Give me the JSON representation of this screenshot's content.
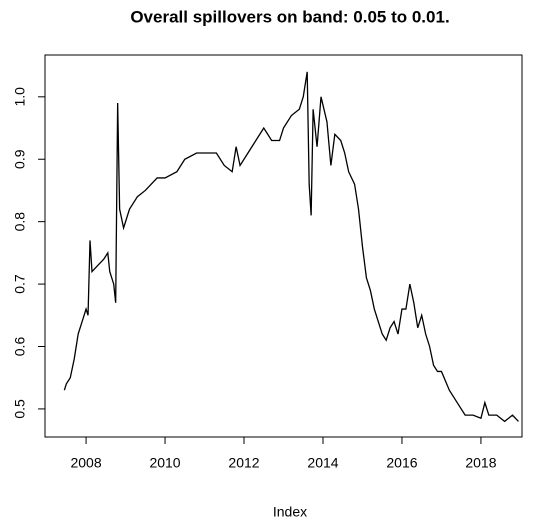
{
  "chart_data": {
    "type": "line",
    "title": "Overall spillovers on band: 0.05 to 0.01.",
    "x_label": "Index",
    "x": [
      2007.45,
      2007.5,
      2007.6,
      2007.7,
      2007.8,
      2007.9,
      2008.0,
      2008.05,
      2008.1,
      2008.15,
      2008.3,
      2008.45,
      2008.55,
      2008.6,
      2008.7,
      2008.75,
      2008.8,
      2008.85,
      2008.95,
      2009.1,
      2009.3,
      2009.5,
      2009.8,
      2010.0,
      2010.3,
      2010.5,
      2010.8,
      2011.0,
      2011.3,
      2011.5,
      2011.7,
      2011.8,
      2011.9,
      2012.1,
      2012.3,
      2012.5,
      2012.7,
      2012.9,
      2013.0,
      2013.2,
      2013.4,
      2013.5,
      2013.6,
      2013.65,
      2013.7,
      2013.75,
      2013.85,
      2013.95,
      2014.1,
      2014.2,
      2014.3,
      2014.45,
      2014.55,
      2014.65,
      2014.8,
      2014.9,
      2015.0,
      2015.1,
      2015.2,
      2015.3,
      2015.4,
      2015.5,
      2015.6,
      2015.7,
      2015.8,
      2015.9,
      2016.0,
      2016.1,
      2016.2,
      2016.3,
      2016.4,
      2016.5,
      2016.6,
      2016.7,
      2016.8,
      2016.9,
      2017.0,
      2017.2,
      2017.4,
      2017.6,
      2017.8,
      2018.0,
      2018.1,
      2018.2,
      2018.4,
      2018.6,
      2018.8,
      2018.95
    ],
    "series": [
      {
        "color": "#000000",
        "values": [
          0.53,
          0.54,
          0.55,
          0.58,
          0.62,
          0.64,
          0.66,
          0.65,
          0.77,
          0.72,
          0.73,
          0.74,
          0.75,
          0.72,
          0.7,
          0.67,
          0.99,
          0.82,
          0.79,
          0.82,
          0.84,
          0.85,
          0.87,
          0.87,
          0.88,
          0.9,
          0.91,
          0.91,
          0.91,
          0.89,
          0.88,
          0.92,
          0.89,
          0.91,
          0.93,
          0.95,
          0.93,
          0.93,
          0.95,
          0.97,
          0.98,
          1.0,
          1.04,
          0.86,
          0.81,
          0.98,
          0.92,
          1.0,
          0.96,
          0.89,
          0.94,
          0.93,
          0.91,
          0.88,
          0.86,
          0.82,
          0.76,
          0.71,
          0.69,
          0.66,
          0.64,
          0.62,
          0.61,
          0.63,
          0.64,
          0.62,
          0.66,
          0.66,
          0.7,
          0.67,
          0.63,
          0.65,
          0.62,
          0.6,
          0.57,
          0.56,
          0.56,
          0.53,
          0.51,
          0.49,
          0.49,
          0.485,
          0.51,
          0.49,
          0.49,
          0.48,
          0.49,
          0.48
        ]
      }
    ],
    "xlim": [
      2006.96,
      2019.04
    ],
    "ylim": [
      0.455,
      1.067
    ],
    "xticks": [
      2008,
      2010,
      2012,
      2014,
      2016,
      2018
    ],
    "yticks": [
      0.5,
      0.6,
      0.7,
      0.8,
      0.9,
      {
        "value": 1.0,
        "label": "1.0"
      }
    ]
  }
}
